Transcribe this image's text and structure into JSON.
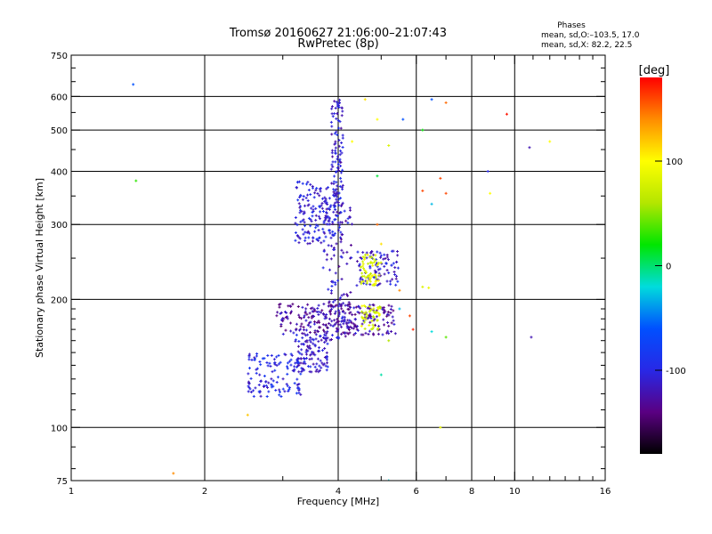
{
  "chart_data": {
    "type": "scatter",
    "title": "Tromsø 20160627 21:06:00–21:07:43",
    "subtitle": "RwPretec (8p)",
    "stats_title": "Phases",
    "stats_line1": "mean, sd,O:–103.5, 17.0",
    "stats_line2": "mean, sd,X:  82.2, 22.5",
    "xlabel": "Frequency [MHz]",
    "ylabel": "Stationary phase Virtual Height [km]",
    "xscale": "log",
    "yscale": "log",
    "xlim": [
      1,
      16
    ],
    "ylim": [
      75,
      750
    ],
    "xticks": [
      1,
      2,
      4,
      6,
      8,
      10,
      16
    ],
    "xtick_labels": [
      "1",
      "2",
      "4",
      "6",
      "8",
      "10",
      "16"
    ],
    "x_minor_ticks": [
      3,
      5,
      7,
      9,
      11,
      12,
      13,
      14,
      15
    ],
    "yticks": [
      75,
      100,
      200,
      300,
      400,
      500,
      600,
      750
    ],
    "ytick_labels": [
      "75",
      "100",
      "200",
      "300",
      "400",
      "500",
      "600",
      "750"
    ],
    "grid_x": [
      2,
      4,
      6,
      8,
      10
    ],
    "grid_y": [
      100,
      200,
      300,
      400,
      500,
      600
    ],
    "colorbar": {
      "label": "[deg]",
      "range": [
        -180,
        180
      ],
      "ticks": [
        100,
        0,
        -100
      ],
      "tick_labels": [
        "100",
        "0",
        "-100"
      ],
      "colors": [
        "#000000",
        "#5a0082",
        "#2828e6",
        "#0050ff",
        "#00dcdc",
        "#00e600",
        "#b4e600",
        "#ffff00",
        "#ff8c00",
        "#ff0000"
      ]
    },
    "clusters": [
      {
        "name": "upper-blue",
        "x_range": [
          3.2,
          4.1
        ],
        "y_range": [
          270,
          380
        ],
        "phase": -105,
        "n": 180
      },
      {
        "name": "main-trace-high",
        "x_range": [
          3.85,
          4.1
        ],
        "y_range": [
          330,
          590
        ],
        "phase": -110,
        "n": 90
      },
      {
        "name": "main-trace-mid",
        "x_range": [
          3.7,
          4.3
        ],
        "y_range": [
          160,
          330
        ],
        "phase": -115,
        "n": 120
      },
      {
        "name": "mid-band",
        "x_range": [
          2.9,
          5.4
        ],
        "y_range": [
          165,
          195
        ],
        "phase": -125,
        "n": 260
      },
      {
        "name": "lower-step",
        "x_range": [
          3.2,
          3.8
        ],
        "y_range": [
          135,
          165
        ],
        "phase": -110,
        "n": 110
      },
      {
        "name": "low-tail",
        "x_range": [
          2.5,
          3.3
        ],
        "y_range": [
          118,
          150
        ],
        "phase": -100,
        "n": 120
      },
      {
        "name": "right-blue-220-260",
        "x_range": [
          4.4,
          5.5
        ],
        "y_range": [
          215,
          260
        ],
        "phase": -110,
        "n": 90
      },
      {
        "name": "x-mode-yellow-upper",
        "x_range": [
          4.5,
          5.0
        ],
        "y_range": [
          215,
          255
        ],
        "phase": 85,
        "n": 60
      },
      {
        "name": "x-mode-yellow-lower",
        "x_range": [
          4.5,
          5.0
        ],
        "y_range": [
          170,
          195
        ],
        "phase": 80,
        "n": 45
      }
    ],
    "outliers": [
      {
        "x": 1.38,
        "y": 640,
        "phase": -60
      },
      {
        "x": 1.4,
        "y": 380,
        "phase": 30
      },
      {
        "x": 1.7,
        "y": 78,
        "phase": 140
      },
      {
        "x": 2.5,
        "y": 107,
        "phase": 120
      },
      {
        "x": 4.6,
        "y": 590,
        "phase": 110
      },
      {
        "x": 4.9,
        "y": 530,
        "phase": 100
      },
      {
        "x": 5.6,
        "y": 530,
        "phase": -60
      },
      {
        "x": 6.5,
        "y": 590,
        "phase": -60
      },
      {
        "x": 7.0,
        "y": 580,
        "phase": 150
      },
      {
        "x": 9.6,
        "y": 545,
        "phase": 175
      },
      {
        "x": 6.2,
        "y": 500,
        "phase": 20
      },
      {
        "x": 10.8,
        "y": 455,
        "phase": -120
      },
      {
        "x": 12.0,
        "y": 470,
        "phase": 100
      },
      {
        "x": 5.2,
        "y": 460,
        "phase": 80
      },
      {
        "x": 8.7,
        "y": 400,
        "phase": -100
      },
      {
        "x": 8.8,
        "y": 355,
        "phase": 100
      },
      {
        "x": 6.8,
        "y": 385,
        "phase": 160
      },
      {
        "x": 7.0,
        "y": 355,
        "phase": 160
      },
      {
        "x": 6.2,
        "y": 360,
        "phase": 160
      },
      {
        "x": 6.5,
        "y": 335,
        "phase": -30
      },
      {
        "x": 4.9,
        "y": 390,
        "phase": 10
      },
      {
        "x": 4.3,
        "y": 470,
        "phase": 100
      },
      {
        "x": 10.9,
        "y": 163,
        "phase": -120
      },
      {
        "x": 5.5,
        "y": 190,
        "phase": -30
      },
      {
        "x": 5.8,
        "y": 183,
        "phase": 160
      },
      {
        "x": 5.9,
        "y": 170,
        "phase": 170
      },
      {
        "x": 6.5,
        "y": 168,
        "phase": -20
      },
      {
        "x": 7.0,
        "y": 163,
        "phase": 40
      },
      {
        "x": 5.2,
        "y": 160,
        "phase": 60
      },
      {
        "x": 5.0,
        "y": 133,
        "phase": -10
      },
      {
        "x": 5.2,
        "y": 75,
        "phase": -20
      },
      {
        "x": 6.2,
        "y": 214,
        "phase": 80
      },
      {
        "x": 6.4,
        "y": 213,
        "phase": 90
      },
      {
        "x": 5.5,
        "y": 210,
        "phase": 140
      },
      {
        "x": 4.9,
        "y": 300,
        "phase": 150
      },
      {
        "x": 5.0,
        "y": 270,
        "phase": 110
      },
      {
        "x": 6.8,
        "y": 100,
        "phase": 90
      }
    ]
  }
}
